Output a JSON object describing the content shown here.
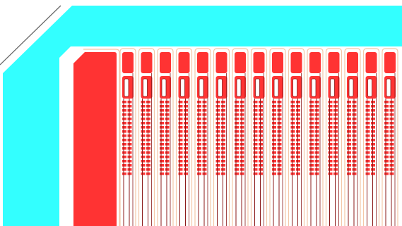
{
  "diagram": {
    "kind": "chip-layout-view",
    "colors": {
      "background": "#ffffff",
      "substrate": "#33ffff",
      "metal": "#ff3333",
      "trace": "#8b1a1a",
      "outline": "#f4c8a8"
    },
    "finger_count": 15,
    "grating_rows": 18
  }
}
